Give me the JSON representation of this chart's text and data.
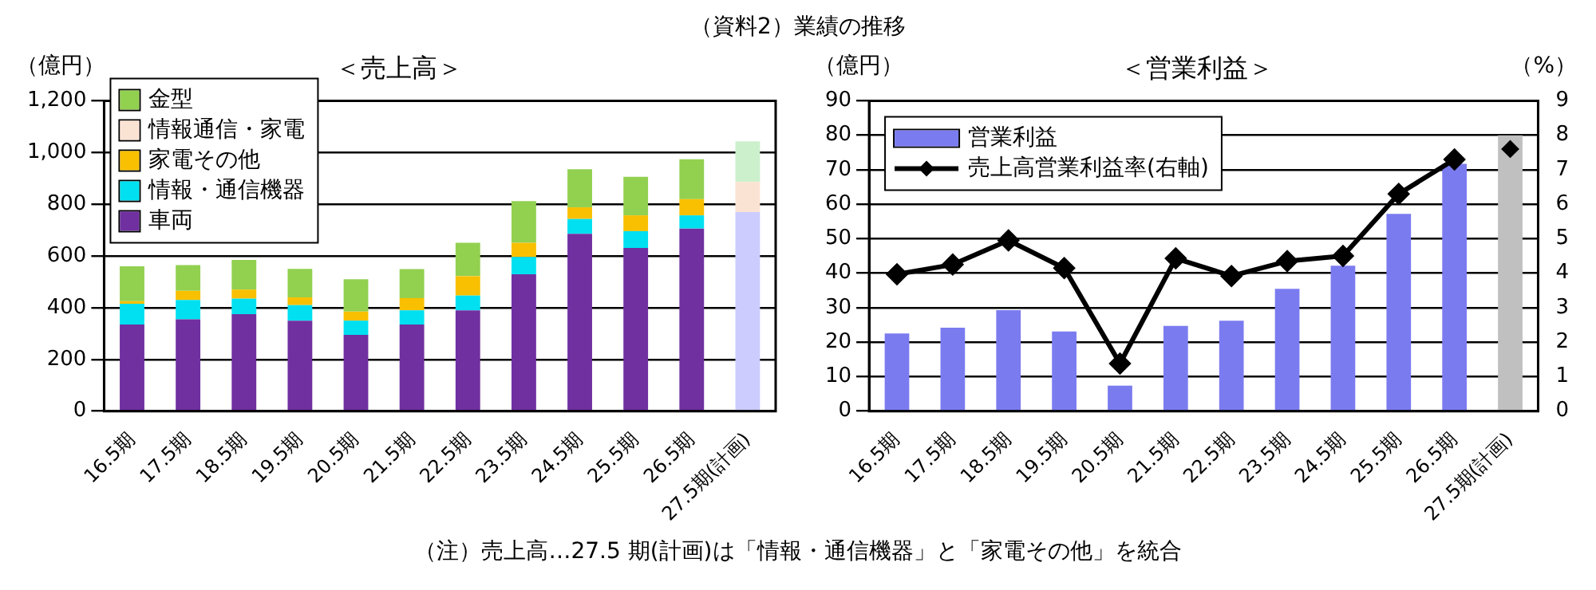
{
  "chart_data": [
    {
      "type": "bar",
      "title": "＜売上高＞",
      "ylabel": "（億円）",
      "stacked": true,
      "legend": "top left",
      "grid": "y",
      "annotations": [
        "（資料2）業績の推移"
      ],
      "categories": [
        "16.5期",
        "17.5期",
        "18.5期",
        "19.5期",
        "20.5期",
        "21.5期",
        "22.5期",
        "23.5期",
        "24.5期",
        "25.5期",
        "26.5期",
        "27.5期(計画)"
      ],
      "ylim": [
        0,
        1200
      ],
      "yticks": [
        0,
        200,
        400,
        600,
        800,
        {
          "value": 1000,
          "label": "1,000"
        },
        {
          "value": 1200,
          "label": "1,200"
        }
      ],
      "series": [
        {
          "name": "車両",
          "color": "#7030a0",
          "colors": [
            "#7030a0",
            "#7030a0",
            "#7030a0",
            "#7030a0",
            "#7030a0",
            "#7030a0",
            "#7030a0",
            "#7030a0",
            "#7030a0",
            "#7030a0",
            "#7030a0",
            "#ccccff"
          ],
          "values": [
            335,
            355,
            375,
            350,
            295,
            335,
            390,
            529,
            686,
            631,
            706,
            770
          ]
        },
        {
          "name": "情報・通信機器",
          "color": "#00e0f0",
          "values": [
            80,
            75,
            60,
            60,
            55,
            55,
            57,
            67,
            57,
            65,
            51,
            null
          ]
        },
        {
          "name": "家電その他",
          "color": "#f8c000",
          "values": [
            10,
            35,
            35,
            30,
            35,
            47,
            75,
            55,
            45,
            61,
            63,
            null
          ]
        },
        {
          "name": "情報通信・家電",
          "color": "#fbe3d3",
          "values": [
            null,
            null,
            null,
            null,
            null,
            null,
            null,
            null,
            null,
            null,
            null,
            116
          ]
        },
        {
          "name": "金型",
          "color": "#92d050",
          "colors": [
            "#92d050",
            "#92d050",
            "#92d050",
            "#92d050",
            "#92d050",
            "#92d050",
            "#92d050",
            "#92d050",
            "#92d050",
            "#92d050",
            "#92d050",
            "#ccf0cc"
          ],
          "values": [
            135,
            100,
            115,
            110,
            125,
            112,
            129,
            161,
            147,
            149,
            154,
            157
          ]
        }
      ]
    },
    {
      "type": "bar",
      "title": "＜営業利益＞",
      "ylabel": "（億円）",
      "y2label": "（%）",
      "legend": "top left",
      "grid": "y",
      "marker": "diamond",
      "annotations": [
        "（注）売上高…27.5 期(計画)は「情報・通信機器」と「家電その他」を統合"
      ],
      "categories": [
        "16.5期",
        "17.5期",
        "18.5期",
        "19.5期",
        "20.5期",
        "21.5期",
        "22.5期",
        "23.5期",
        "24.5期",
        "25.5期",
        "26.5期",
        "27.5期(計画)"
      ],
      "ylim": [
        0,
        90
      ],
      "yticks": [
        0,
        10,
        20,
        30,
        40,
        50,
        60,
        70,
        80,
        90
      ],
      "y2lim": [
        0,
        9
      ],
      "y2ticks": [
        0,
        1,
        2,
        3,
        4,
        5,
        6,
        7,
        8,
        9
      ],
      "series": [
        {
          "type": "bar",
          "name": "営業利益",
          "color": "#7b7bf0",
          "colors": [
            "#7b7bf0",
            "#7b7bf0",
            "#7b7bf0",
            "#7b7bf0",
            "#7b7bf0",
            "#7b7bf0",
            "#7b7bf0",
            "#7b7bf0",
            "#7b7bf0",
            "#7b7bf0",
            "#7b7bf0",
            "#c0c0c0"
          ],
          "values": [
            22.5,
            24.2,
            29.3,
            23.1,
            7.4,
            24.7,
            26.2,
            35.5,
            42.2,
            57.2,
            71.7,
            80
          ]
        },
        {
          "type": "line",
          "name": "売上高営業利益率(右軸)",
          "color": "#000000",
          "axis": "y2",
          "values": [
            3.97,
            4.25,
            4.95,
            4.15,
            1.38,
            4.43,
            3.92,
            4.35,
            4.5,
            6.3,
            7.3,
            null
          ]
        },
        {
          "type": "scatter",
          "color": "#000000",
          "axis": "y2",
          "x": [
            "27.5期(計画)"
          ],
          "values": [
            7.6
          ]
        }
      ]
    }
  ]
}
